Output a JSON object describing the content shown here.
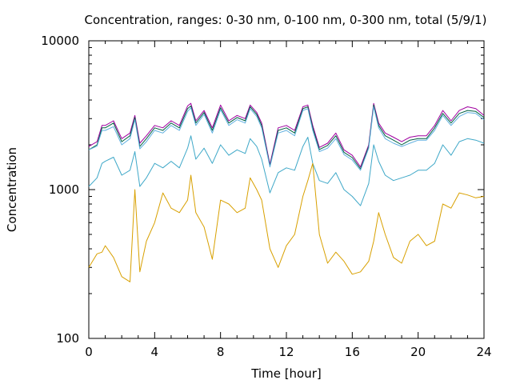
{
  "chart_data": {
    "type": "line",
    "title": "Concentration, ranges: 0-30 nm, 0-100 nm, 0-300 nm, total (5/9/1)",
    "xlabel": "Time [hour]",
    "ylabel": "Concentration",
    "xlim": [
      0,
      24
    ],
    "ylim": [
      100,
      10000
    ],
    "yscale": "log",
    "grid": false,
    "legend": "none",
    "xticks": [
      0,
      4,
      8,
      12,
      16,
      20,
      24
    ],
    "xtick_labels": [
      "0",
      "4",
      "8",
      "12",
      "16",
      "20",
      "24"
    ],
    "yticks": [
      100,
      1000,
      10000
    ],
    "ytick_labels": [
      "100",
      "1000",
      "10000"
    ],
    "x": [
      0,
      0.5,
      0.8,
      1.0,
      1.5,
      2.0,
      2.5,
      2.8,
      3.1,
      3.5,
      4.0,
      4.5,
      5.0,
      5.5,
      6.0,
      6.2,
      6.5,
      7.0,
      7.5,
      8.0,
      8.5,
      9.0,
      9.5,
      9.8,
      10.2,
      10.5,
      11.0,
      11.5,
      12.0,
      12.5,
      13.0,
      13.3,
      13.6,
      14.0,
      14.5,
      15.0,
      15.5,
      16.0,
      16.5,
      17.0,
      17.3,
      17.6,
      18.0,
      18.5,
      19.0,
      19.5,
      20.0,
      20.5,
      21.0,
      21.5,
      22.0,
      22.5,
      23.0,
      23.5,
      24.0
    ],
    "series": [
      {
        "color": "#a000a0",
        "values": [
          1950,
          2100,
          2700,
          2700,
          2900,
          2200,
          2400,
          3150,
          2050,
          2300,
          2700,
          2600,
          2900,
          2700,
          3650,
          3800,
          2900,
          3400,
          2600,
          3700,
          2900,
          3150,
          3000,
          3700,
          3300,
          2800,
          1480,
          2600,
          2700,
          2500,
          3600,
          3700,
          2700,
          1920,
          2050,
          2400,
          1850,
          1700,
          1420,
          2000,
          3800,
          2800,
          2400,
          2250,
          2100,
          2250,
          2300,
          2300,
          2700,
          3400,
          2900,
          3400,
          3600,
          3500,
          3150
        ]
      },
      {
        "color": "#006040",
        "values": [
          1850,
          2000,
          2600,
          2600,
          2800,
          2100,
          2300,
          3050,
          1950,
          2200,
          2600,
          2500,
          2800,
          2600,
          3500,
          3650,
          2800,
          3300,
          2500,
          3550,
          2800,
          3050,
          2900,
          3600,
          3200,
          2700,
          1440,
          2500,
          2600,
          2400,
          3500,
          3600,
          2600,
          1860,
          1980,
          2300,
          1780,
          1640,
          1380,
          1950,
          3700,
          2700,
          2300,
          2150,
          2000,
          2150,
          2200,
          2200,
          2600,
          3250,
          2800,
          3250,
          3400,
          3350,
          3050
        ]
      },
      {
        "color": "#60b0e0",
        "values": [
          1850,
          1960,
          2500,
          2500,
          2650,
          2000,
          2200,
          2950,
          1880,
          2100,
          2500,
          2400,
          2700,
          2500,
          3350,
          3550,
          2700,
          3200,
          2400,
          3450,
          2700,
          2950,
          2800,
          3500,
          3100,
          2600,
          1420,
          2400,
          2500,
          2300,
          3400,
          3500,
          2500,
          1800,
          1900,
          2200,
          1720,
          1580,
          1350,
          1900,
          3600,
          2600,
          2200,
          2050,
          1950,
          2050,
          2150,
          2150,
          2500,
          3150,
          2700,
          3100,
          3300,
          3250,
          2950
        ]
      },
      {
        "color": "#3fa8c8",
        "values": [
          1050,
          1200,
          1500,
          1550,
          1650,
          1250,
          1350,
          1800,
          1050,
          1200,
          1500,
          1400,
          1550,
          1400,
          1900,
          2300,
          1600,
          1900,
          1500,
          2000,
          1700,
          1850,
          1750,
          2200,
          1950,
          1600,
          950,
          1300,
          1400,
          1350,
          1950,
          2250,
          1500,
          1150,
          1100,
          1300,
          1000,
          900,
          780,
          1100,
          2000,
          1550,
          1250,
          1150,
          1200,
          1250,
          1350,
          1350,
          1500,
          2000,
          1700,
          2100,
          2200,
          2150,
          2050
        ]
      },
      {
        "color": "#d8a000",
        "values": [
          300,
          370,
          380,
          420,
          350,
          260,
          240,
          1000,
          280,
          450,
          600,
          950,
          750,
          700,
          850,
          1250,
          700,
          560,
          340,
          850,
          800,
          700,
          750,
          1200,
          1000,
          850,
          400,
          300,
          420,
          500,
          900,
          1150,
          1500,
          500,
          320,
          380,
          330,
          270,
          280,
          330,
          450,
          700,
          500,
          350,
          320,
          450,
          500,
          420,
          450,
          800,
          750,
          950,
          920,
          880,
          900
        ]
      }
    ]
  }
}
